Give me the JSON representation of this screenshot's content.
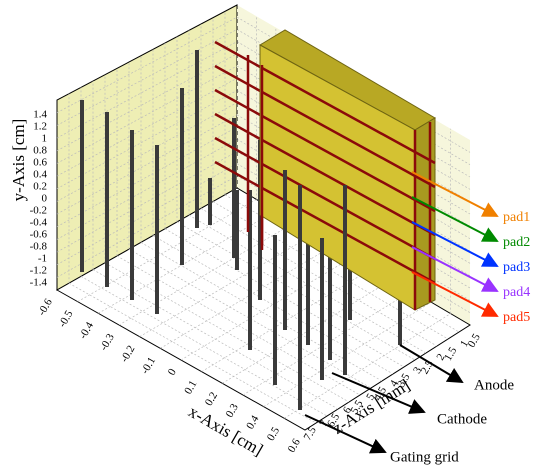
{
  "axes": {
    "y_title": "y-Axis [cm]",
    "x_title": "x-Axis [cm]",
    "z_title": "z-Axis [mm]",
    "y_ticks": [
      "1.4",
      "1.2",
      "1",
      "0.8",
      "0.6",
      "0.4",
      "0.2",
      "0",
      "-0.2",
      "-0.4",
      "-0.6",
      "-0.8",
      "-1",
      "-1.2",
      "-1.4"
    ],
    "x_ticks": [
      "-0.6",
      "-0.5",
      "-0.4",
      "-0.3",
      "-0.2",
      "-0.1",
      "0",
      "0.1",
      "0.2",
      "0.3",
      "0.4",
      "0.5",
      "0.6"
    ],
    "z_ticks": [
      "0.5",
      "1",
      "1.5",
      "2",
      "2.5",
      "3",
      "3.5",
      "4",
      "4.5",
      "5",
      "5.5",
      "6",
      "6.5",
      "7",
      "7.5"
    ]
  },
  "pads": [
    {
      "label": "pad1",
      "color": "#f08000"
    },
    {
      "label": "pad2",
      "color": "#008a00"
    },
    {
      "label": "pad3",
      "color": "#0033ff"
    },
    {
      "label": "pad4",
      "color": "#9933ff"
    },
    {
      "label": "pad5",
      "color": "#ff2a00"
    }
  ],
  "wire_labels": [
    "Anode",
    "Cathode",
    "Gating grid"
  ]
}
